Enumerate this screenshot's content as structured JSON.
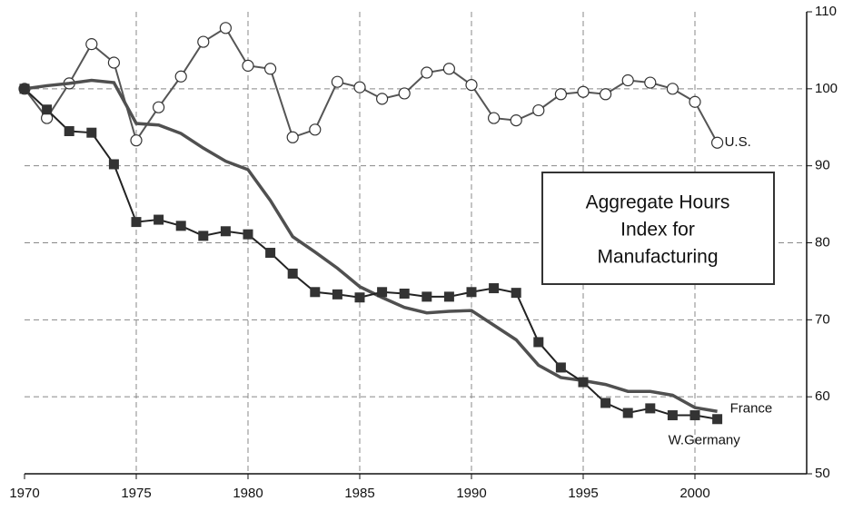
{
  "chart_data": {
    "type": "line",
    "annotation": [
      "Aggregate Hours",
      "Index for",
      "Manufacturing"
    ],
    "x": [
      1970,
      1971,
      1972,
      1973,
      1974,
      1975,
      1976,
      1977,
      1978,
      1979,
      1980,
      1981,
      1982,
      1983,
      1984,
      1985,
      1986,
      1987,
      1988,
      1989,
      1990,
      1991,
      1992,
      1993,
      1994,
      1995,
      1996,
      1997,
      1998,
      1999,
      2000,
      2001
    ],
    "series": [
      {
        "name": "U.S.",
        "color": "#555555",
        "marker": "circle",
        "values": [
          100,
          96.2,
          100.7,
          105.8,
          103.4,
          93.3,
          97.6,
          101.6,
          106.1,
          107.9,
          103.0,
          102.6,
          93.7,
          94.7,
          100.9,
          100.2,
          98.7,
          99.4,
          102.1,
          102.6,
          100.5,
          96.2,
          95.9,
          97.2,
          99.3,
          99.6,
          99.3,
          101.1,
          100.8,
          100.0,
          98.3,
          93.0
        ]
      },
      {
        "name": "France",
        "color": "#505050",
        "marker": "none",
        "values": [
          100,
          100.4,
          100.7,
          101.1,
          100.8,
          95.5,
          95.3,
          94.2,
          92.3,
          90.6,
          89.5,
          85.5,
          80.8,
          78.8,
          76.7,
          74.3,
          72.9,
          71.6,
          70.9,
          71.1,
          71.2,
          69.3,
          67.4,
          64.1,
          62.5,
          62.1,
          61.6,
          60.7,
          60.7,
          60.2,
          58.6,
          58.1
        ]
      },
      {
        "name": "W.Germany",
        "color": "#222222",
        "marker": "square",
        "values": [
          100,
          97.3,
          94.5,
          94.3,
          90.2,
          82.7,
          83.0,
          82.2,
          80.9,
          81.5,
          81.1,
          78.7,
          76.0,
          73.6,
          73.3,
          72.9,
          73.6,
          73.4,
          73.0,
          73.0,
          73.6,
          74.1,
          73.5,
          67.1,
          63.8,
          61.9,
          59.2,
          57.9,
          58.5,
          57.6,
          57.6,
          57.1
        ]
      }
    ],
    "xlim": [
      1970,
      2005
    ],
    "xticks": [
      1970,
      1975,
      1980,
      1985,
      1990,
      1995,
      2000
    ],
    "ylim": [
      50,
      110
    ],
    "yticks": [
      50,
      60,
      70,
      80,
      90,
      100,
      110
    ],
    "y_axis_side": "right",
    "grid": true
  }
}
